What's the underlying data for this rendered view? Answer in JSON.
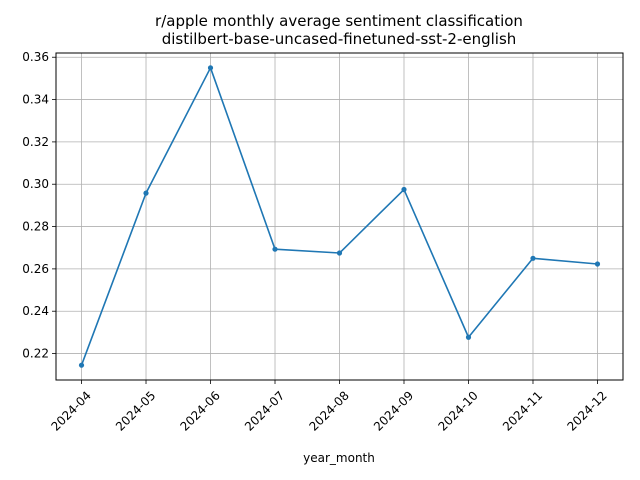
{
  "chart_data": {
    "type": "line",
    "title": "r/apple monthly average sentiment classification",
    "subtitle": "distilbert-base-uncased-finetuned-sst-2-english",
    "xlabel": "year_month",
    "ylabel": "",
    "categories": [
      "2024-04",
      "2024-05",
      "2024-06",
      "2024-07",
      "2024-08",
      "2024-09",
      "2024-10",
      "2024-11",
      "2024-12"
    ],
    "series": [
      {
        "values": [
          0.2145,
          0.2958,
          0.355,
          0.2693,
          0.2675,
          0.2975,
          0.2277,
          0.265,
          0.2623
        ],
        "color": "#1f77b4"
      }
    ],
    "yticks": [
      0.22,
      0.24,
      0.26,
      0.28,
      0.3,
      0.32,
      0.34,
      0.36
    ],
    "ylim": [
      0.2075,
      0.362
    ],
    "grid": true,
    "markers": "dot",
    "x_tick_rotation": "45deg"
  }
}
